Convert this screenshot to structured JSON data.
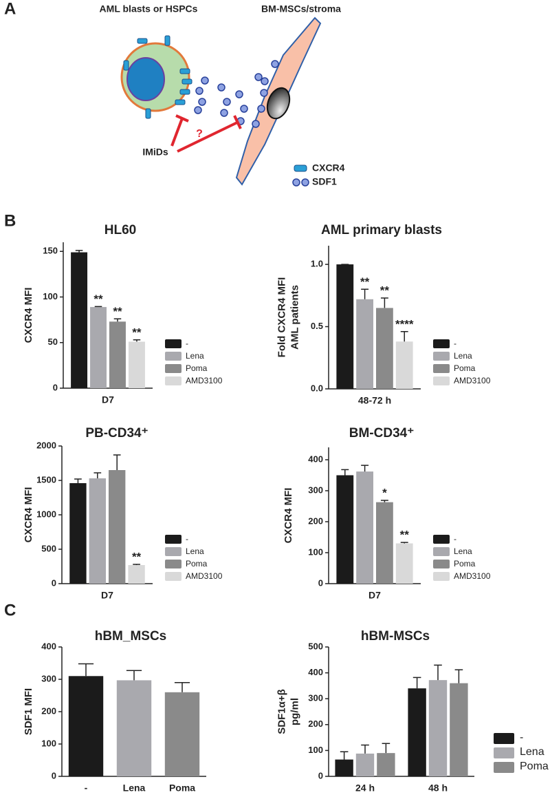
{
  "panels": [
    "A",
    "B",
    "C"
  ],
  "diagram": {
    "cell_label": "AML blasts or HSPCs",
    "stroma_label": "BM-MSCs/stroma",
    "question": "?",
    "drug": "IMiDs",
    "legend": [
      "CXCR4",
      "SDF1"
    ]
  },
  "chart_data": [
    {
      "type": "bar",
      "title": "HL60",
      "ylabel": "CXCR4 MFI",
      "categories": [
        "D7"
      ],
      "ylim": [
        0,
        160
      ],
      "yticks": [
        0,
        50,
        100,
        150
      ],
      "series": [
        {
          "name": "-",
          "color": "#1b1b1b",
          "values": [
            149
          ],
          "errors": [
            2
          ]
        },
        {
          "name": "Lena",
          "color": "#a9a9ae",
          "values": [
            89
          ],
          "errors": [
            0.5
          ],
          "annotations": [
            "**"
          ]
        },
        {
          "name": "Poma",
          "color": "#8a8a8a",
          "values": [
            73
          ],
          "errors": [
            3
          ],
          "annotations": [
            "**"
          ]
        },
        {
          "name": "AMD3100",
          "color": "#d9d9d9",
          "values": [
            51
          ],
          "errors": [
            2
          ],
          "annotations": [
            "**"
          ]
        }
      ]
    },
    {
      "type": "bar",
      "title": "AML primary blasts",
      "ylabel": [
        "Fold CXCR4 MFI",
        "AML patients"
      ],
      "categories": [
        "48-72 h"
      ],
      "ylim": [
        0,
        1.15
      ],
      "yticks": [
        {
          "value": 0,
          "label": "0.0"
        },
        {
          "value": 0.5,
          "label": "0.5"
        },
        {
          "value": 1,
          "label": "1.0"
        }
      ],
      "series": [
        {
          "name": "-",
          "color": "#1b1b1b",
          "values": [
            1.0
          ],
          "errors": [
            0
          ]
        },
        {
          "name": "Lena",
          "color": "#a9a9ae",
          "values": [
            0.72
          ],
          "errors": [
            0.08
          ],
          "annotations": [
            "**"
          ]
        },
        {
          "name": "Poma",
          "color": "#8a8a8a",
          "values": [
            0.65
          ],
          "errors": [
            0.08
          ],
          "annotations": [
            "**"
          ]
        },
        {
          "name": "AMD3100",
          "color": "#d9d9d9",
          "values": [
            0.38
          ],
          "errors": [
            0.08
          ],
          "annotations": [
            "****"
          ]
        }
      ]
    },
    {
      "type": "bar",
      "title": "PB-CD34⁺",
      "ylabel": "CXCR4 MFI",
      "categories": [
        "D7"
      ],
      "ylim": [
        0,
        2000
      ],
      "yticks": [
        0,
        500,
        1000,
        1500,
        2000
      ],
      "series": [
        {
          "name": "-",
          "color": "#1b1b1b",
          "values": [
            1460
          ],
          "errors": [
            60
          ]
        },
        {
          "name": "Lena",
          "color": "#a9a9ae",
          "values": [
            1530
          ],
          "errors": [
            80
          ]
        },
        {
          "name": "Poma",
          "color": "#8a8a8a",
          "values": [
            1650
          ],
          "errors": [
            220
          ]
        },
        {
          "name": "AMD3100",
          "color": "#d9d9d9",
          "values": [
            270
          ],
          "errors": [
            10
          ],
          "annotations": [
            "**"
          ]
        }
      ]
    },
    {
      "type": "bar",
      "title": "BM-CD34⁺",
      "ylabel": "CXCR4 MFI",
      "categories": [
        "D7"
      ],
      "ylim": [
        0,
        440
      ],
      "yticks": [
        0,
        100,
        200,
        300,
        400
      ],
      "series": [
        {
          "name": "-",
          "color": "#1b1b1b",
          "values": [
            350
          ],
          "errors": [
            18
          ]
        },
        {
          "name": "Lena",
          "color": "#a9a9ae",
          "values": [
            362
          ],
          "errors": [
            20
          ]
        },
        {
          "name": "Poma",
          "color": "#8a8a8a",
          "values": [
            263
          ],
          "errors": [
            6
          ],
          "annotations": [
            "*"
          ]
        },
        {
          "name": "AMD3100",
          "color": "#d9d9d9",
          "values": [
            130
          ],
          "errors": [
            3
          ],
          "annotations": [
            "**"
          ]
        }
      ]
    },
    {
      "type": "bar",
      "title": "hBM_MSCs",
      "ylabel": "SDF1 MFI",
      "categories": [
        "-",
        "Lena",
        "Poma"
      ],
      "ylim": [
        0,
        400
      ],
      "yticks": [
        0,
        100,
        200,
        300,
        400
      ],
      "series": [
        {
          "colors": [
            "#1b1b1b",
            "#a9a9ae",
            "#8a8a8a"
          ],
          "values": [
            310,
            297,
            260
          ],
          "errors": [
            38,
            30,
            30
          ]
        }
      ]
    },
    {
      "type": "bar",
      "title": "hBM-MSCs",
      "ylabel": [
        "SDF1α+β",
        "pg/ml"
      ],
      "categories": [
        "24 h",
        "48 h"
      ],
      "ylim": [
        0,
        500
      ],
      "yticks": [
        0,
        100,
        200,
        300,
        400,
        500
      ],
      "series": [
        {
          "name": "-",
          "color": "#1b1b1b",
          "values": [
            65,
            340
          ],
          "errors": [
            30,
            42
          ]
        },
        {
          "name": "Lena",
          "color": "#a9a9ae",
          "values": [
            88,
            372
          ],
          "errors": [
            33,
            58
          ]
        },
        {
          "name": "Poma",
          "color": "#8a8a8a",
          "values": [
            90,
            360
          ],
          "errors": [
            37,
            52
          ]
        }
      ]
    }
  ]
}
